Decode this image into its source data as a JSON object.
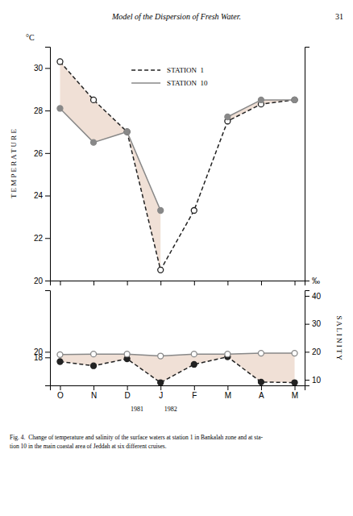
{
  "chart_data": [
    {
      "type": "line",
      "title": "Model of the Dispersion of Fresh Water.",
      "annotations": [
        "°C",
        "31"
      ],
      "ylabel": "T E M P E R A T U R E",
      "categories": [
        "O",
        "N",
        "D",
        "J",
        "F",
        "M",
        "A",
        "M"
      ],
      "tick_labels": "y",
      "color": "#f0e0d6",
      "legend": "top",
      "ylim": [
        20,
        31
      ],
      "yticks": [
        20,
        22,
        24,
        26,
        28,
        30
      ],
      "y2lim": [
        20,
        31
      ],
      "y2ticks": [
        {
          "value": 20,
          "label": "‰"
        }
      ],
      "series": [
        {
          "name": "STATION  1",
          "color": "#222222",
          "line_style": "dashed",
          "marker": "circle-open",
          "values": [
            30.3,
            28.5,
            27.0,
            20.5,
            23.3,
            27.5,
            28.3,
            28.5
          ]
        },
        {
          "name": "STATION  10",
          "color": "#888888",
          "line_style": "solid",
          "marker": "circle",
          "values": [
            28.1,
            26.5,
            27.0,
            23.3,
            null,
            27.7,
            28.5,
            28.5
          ]
        }
      ]
    },
    {
      "type": "line",
      "annotations": [
        "Fig. 4.  Change of temperature and salinity of the surface waters at station 1 in Bankalah zone and at sta-\ntion 10 in the main coastal area of Jeddah at six different cruises."
      ],
      "y2label": "S A L I N I T Y",
      "categories": [
        "O",
        "N",
        "D",
        "J",
        "F",
        "M",
        "A",
        "M"
      ],
      "category_sublabels": [
        null,
        null,
        "1981",
        "1982",
        null,
        null,
        null,
        null
      ],
      "color": "#f0e0d6",
      "ylim": [
        8,
        42
      ],
      "yticks": [
        18,
        20
      ],
      "y2lim": [
        8,
        42
      ],
      "y2ticks": [
        10,
        20,
        30,
        40
      ],
      "series": [
        {
          "color": "#222222",
          "line_style": "dashed",
          "marker": "circle",
          "values": [
            16.5,
            15.0,
            17.5,
            9.0,
            15.5,
            18.2,
            9.2,
            9.0
          ]
        },
        {
          "color": "#888888",
          "line_style": "solid",
          "marker": "circle-open",
          "values": [
            19.0,
            19.2,
            19.2,
            18.5,
            19.2,
            19.2,
            19.5,
            19.5
          ]
        }
      ]
    }
  ]
}
